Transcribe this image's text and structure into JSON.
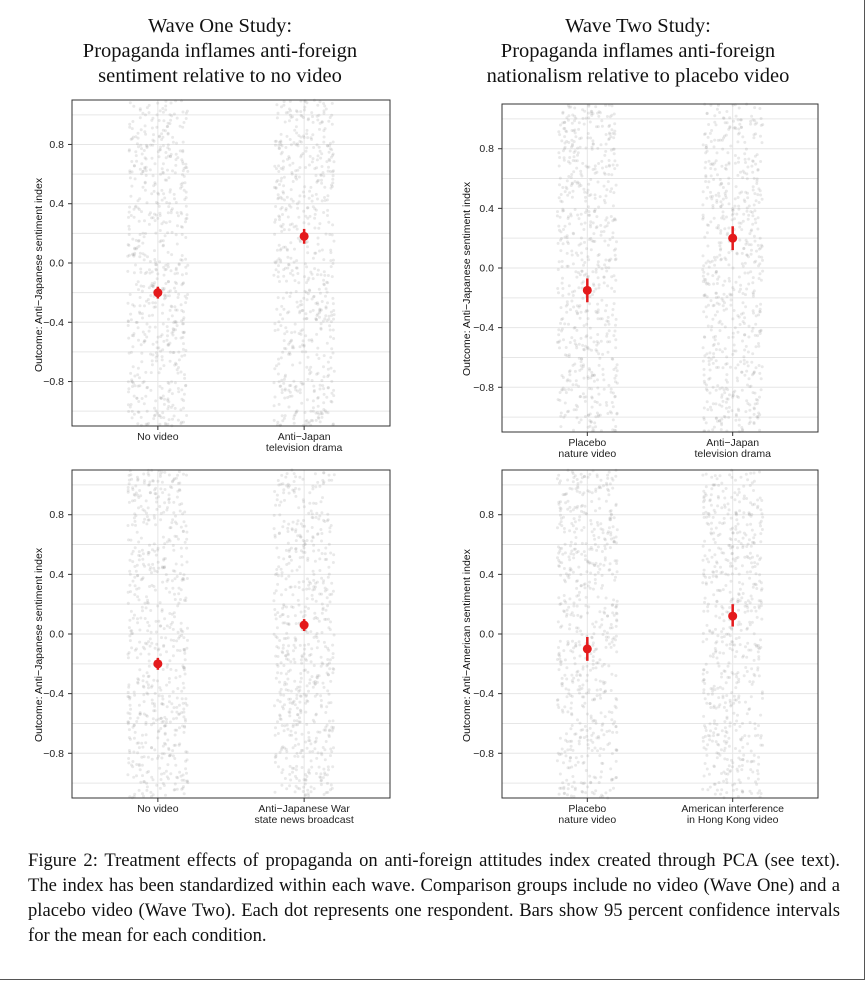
{
  "columns": [
    {
      "title_lines": [
        "Wave One Study:",
        "Propaganda inflames anti-foreign",
        "sentiment relative to no video"
      ]
    },
    {
      "title_lines": [
        "Wave Two Study:",
        "Propaganda inflames anti-foreign",
        "nationalism relative to placebo video"
      ]
    }
  ],
  "caption": "Figure 2: Treatment effects of propaganda on anti-foreign attitudes index created through PCA (see text). The index has been standardized within each wave. Comparison groups include no video (Wave One) and a placebo video (Wave Two). Each dot represents one respondent. Bars show 95 percent confidence intervals for the mean for each condition.",
  "colors": {
    "point": "#e41a1c",
    "jitter": "#9a9a9a",
    "grid": "#e6e6e6",
    "axis": "#333333"
  },
  "chart_data": [
    {
      "type": "scatter",
      "ylabel": "Outcome: Anti−Japanese sentiment index",
      "ylim": [
        -1.1,
        1.1
      ],
      "yticks": [
        "0.8",
        "0.4",
        "0.0",
        "−0.4",
        "−0.8"
      ],
      "ytick_values": [
        0.8,
        0.4,
        0.0,
        -0.4,
        -0.8
      ],
      "categories": [
        [
          "No video"
        ],
        [
          "Anti−Japan",
          "television drama"
        ]
      ],
      "means": [
        -0.2,
        0.18
      ],
      "ci": [
        [
          -0.24,
          -0.16
        ],
        [
          0.13,
          0.23
        ]
      ],
      "grid": true
    },
    {
      "type": "scatter",
      "ylabel": "Outcome: Anti−Japanese sentiment index",
      "ylim": [
        -1.1,
        1.1
      ],
      "yticks": [
        "0.8",
        "0.4",
        "0.0",
        "−0.4",
        "−0.8"
      ],
      "ytick_values": [
        0.8,
        0.4,
        0.0,
        -0.4,
        -0.8
      ],
      "categories": [
        [
          "Placebo",
          "nature video"
        ],
        [
          "Anti−Japan",
          "television drama"
        ]
      ],
      "means": [
        -0.15,
        0.2
      ],
      "ci": [
        [
          -0.23,
          -0.07
        ],
        [
          0.12,
          0.28
        ]
      ],
      "grid": true
    },
    {
      "type": "scatter",
      "ylabel": "Outcome: Anti−Japanese sentiment index",
      "ylim": [
        -1.1,
        1.1
      ],
      "yticks": [
        "0.8",
        "0.4",
        "0.0",
        "−0.4",
        "−0.8"
      ],
      "ytick_values": [
        0.8,
        0.4,
        0.0,
        -0.4,
        -0.8
      ],
      "categories": [
        [
          "No video"
        ],
        [
          "Anti−Japanese War",
          "state news broadcast"
        ]
      ],
      "means": [
        -0.2,
        0.06
      ],
      "ci": [
        [
          -0.24,
          -0.16
        ],
        [
          0.02,
          0.1
        ]
      ],
      "grid": true
    },
    {
      "type": "scatter",
      "ylabel": "Outcome: Anti−American sentiment index",
      "ylim": [
        -1.1,
        1.1
      ],
      "yticks": [
        "0.8",
        "0.4",
        "0.0",
        "−0.4",
        "−0.8"
      ],
      "ytick_values": [
        0.8,
        0.4,
        0.0,
        -0.4,
        -0.8
      ],
      "categories": [
        [
          "Placebo",
          "nature video"
        ],
        [
          "American interference",
          "in Hong Kong video"
        ]
      ],
      "means": [
        -0.1,
        0.12
      ],
      "ci": [
        [
          -0.18,
          -0.02
        ],
        [
          0.05,
          0.2
        ]
      ],
      "grid": true
    }
  ]
}
